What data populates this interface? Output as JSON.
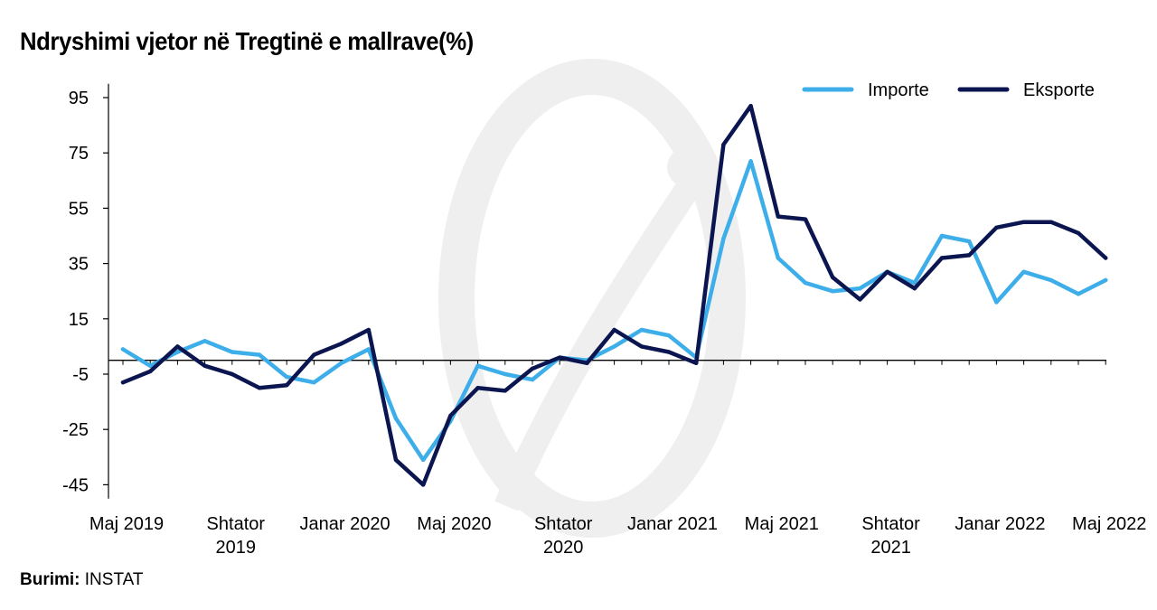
{
  "chart_data": {
    "type": "line",
    "title": "Ndryshimi vjetor në Tregtinë e mallrave(%)",
    "source_label": "Burimi:",
    "source_value": "INSTAT",
    "ylim": [
      -50,
      100
    ],
    "yticks": [
      95,
      75,
      55,
      35,
      15,
      -5,
      -25,
      -45
    ],
    "xtick_labels": [
      {
        "index": 0,
        "lines": [
          "Maj 2019"
        ]
      },
      {
        "index": 4,
        "lines": [
          "Shtator",
          "2019"
        ]
      },
      {
        "index": 8,
        "lines": [
          "Janar 2020"
        ]
      },
      {
        "index": 12,
        "lines": [
          "Maj 2020"
        ]
      },
      {
        "index": 16,
        "lines": [
          "Shtator",
          "2020"
        ]
      },
      {
        "index": 20,
        "lines": [
          "Janar 2021"
        ]
      },
      {
        "index": 24,
        "lines": [
          "Maj 2021"
        ]
      },
      {
        "index": 28,
        "lines": [
          "Shtator",
          "2021"
        ]
      },
      {
        "index": 32,
        "lines": [
          "Janar 2022"
        ]
      },
      {
        "index": 36,
        "lines": [
          "Maj 2022"
        ]
      }
    ],
    "series": [
      {
        "name": "Importe",
        "color": "#3daee9",
        "values": [
          4,
          -2,
          3,
          7,
          3,
          2,
          -6,
          -8,
          -1,
          4,
          -21,
          -36,
          -22,
          -2,
          -5,
          -7,
          1,
          0,
          5,
          11,
          9,
          1,
          44,
          72,
          37,
          28,
          25,
          26,
          32,
          28,
          45,
          43,
          21,
          32,
          29,
          24,
          29
        ]
      },
      {
        "name": "Eksporte",
        "color": "#0b1650",
        "values": [
          -8,
          -4,
          5,
          -2,
          -5,
          -10,
          -9,
          2,
          6,
          11,
          -36,
          -45,
          -20,
          -10,
          -11,
          -3,
          1,
          -1,
          11,
          5,
          3,
          -1,
          78,
          92,
          52,
          51,
          30,
          22,
          32,
          26,
          37,
          38,
          48,
          50,
          50,
          46,
          37
        ]
      }
    ]
  }
}
